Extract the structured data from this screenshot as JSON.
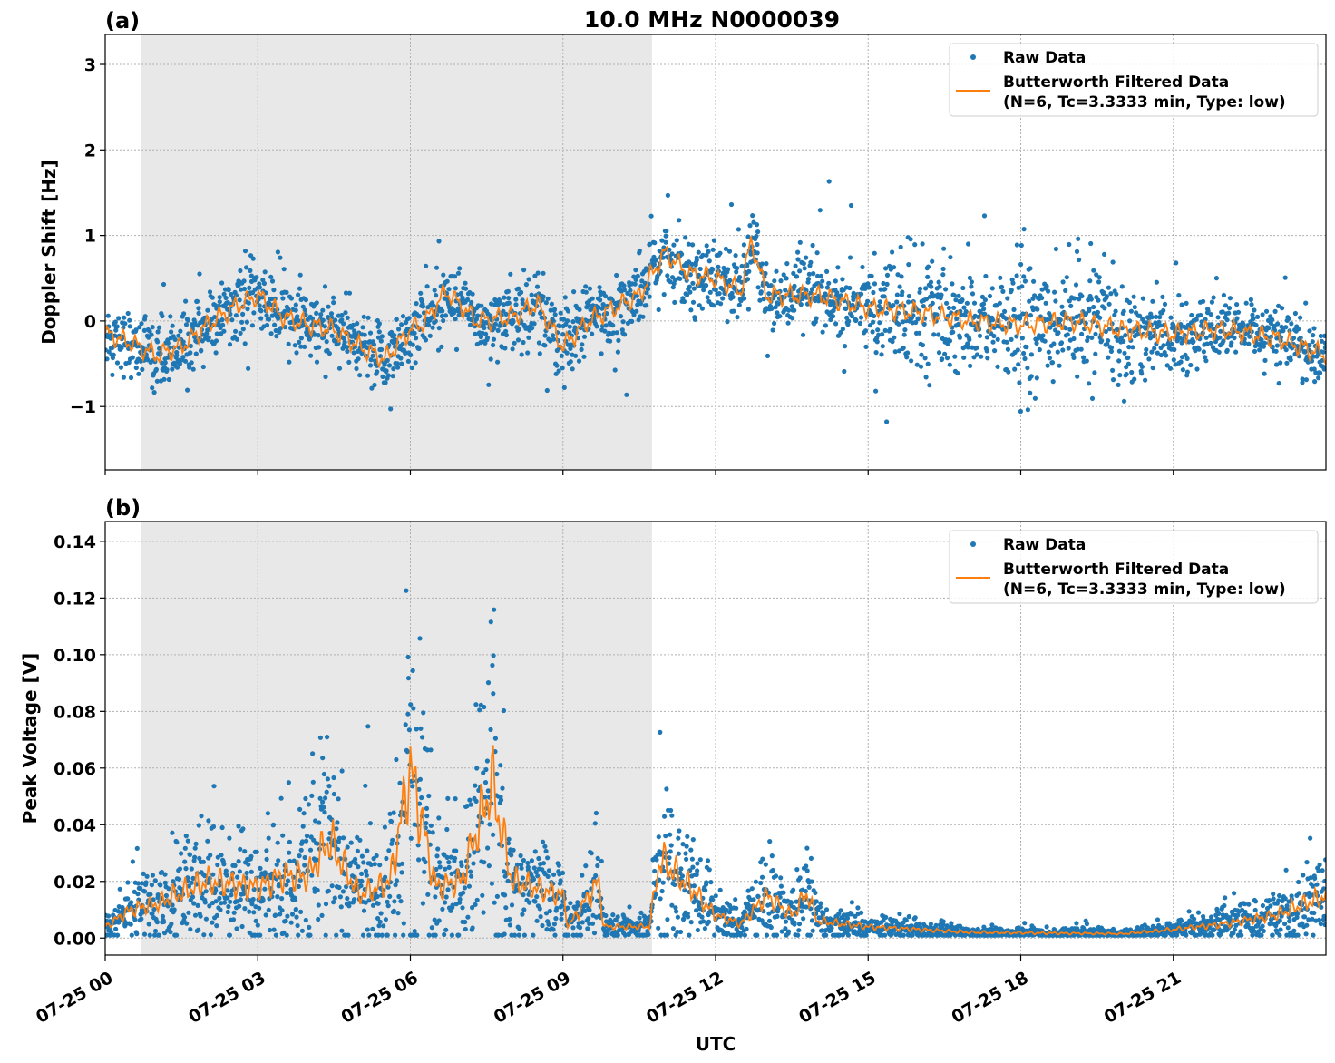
{
  "chart_data": [
    {
      "panel_label": "(a)",
      "type": "scatter",
      "title": "10.0 MHz N0000039",
      "xlabel": "",
      "ylabel": "Doppler Shift [Hz]",
      "xlim_hours": [
        0,
        24
      ],
      "ylim": [
        -1.74,
        3.35
      ],
      "yticks": [
        -1,
        0,
        1,
        2,
        3
      ],
      "ytick_labels": [
        "−1",
        "0",
        "1",
        "2",
        "3"
      ],
      "grid": true,
      "shaded_region_hours": [
        0.7,
        10.75
      ],
      "legend": {
        "placement": "top-right",
        "entries": [
          "Raw Data",
          "Butterworth Filtered Data",
          "(N=6, Tc=3.3333 min, Type: low)"
        ]
      },
      "series": [
        {
          "name": "Butterworth Filtered Data",
          "color": "#ff7f0e",
          "x_hours": [
            0,
            0.5,
            1,
            1.5,
            2,
            2.5,
            3,
            3.5,
            4,
            4.5,
            5,
            5.5,
            6,
            6.3,
            6.7,
            7.3,
            8,
            8.5,
            9,
            9.5,
            10,
            10.5,
            11,
            11.5,
            12,
            12.5,
            12.7,
            13,
            14,
            15,
            16,
            17,
            18,
            19,
            20,
            21,
            22,
            23,
            24
          ],
          "values": [
            -0.15,
            -0.25,
            -0.4,
            -0.3,
            -0.05,
            0.15,
            0.3,
            0.05,
            -0.05,
            -0.1,
            -0.3,
            -0.45,
            -0.1,
            0.0,
            0.35,
            0.0,
            0.05,
            0.2,
            -0.3,
            0.0,
            0.15,
            0.3,
            0.8,
            0.55,
            0.5,
            0.35,
            0.95,
            0.3,
            0.3,
            0.15,
            0.1,
            0.0,
            -0.05,
            0.0,
            -0.1,
            -0.15,
            -0.1,
            -0.2,
            -0.4
          ]
        },
        {
          "name": "Raw Data",
          "color": "#1f77b4",
          "spread_x_hours": [
            0,
            6,
            10,
            12,
            15,
            16,
            18,
            20,
            21,
            24
          ],
          "spread_std": [
            0.18,
            0.2,
            0.22,
            0.2,
            0.25,
            0.32,
            0.38,
            0.3,
            0.18,
            0.16
          ]
        }
      ]
    },
    {
      "panel_label": "(b)",
      "type": "scatter",
      "xlabel": "UTC",
      "ylabel": "Peak Voltage [V]",
      "xlim_hours": [
        0,
        24
      ],
      "ylim": [
        -0.006,
        0.147
      ],
      "yticks": [
        0,
        0.02,
        0.04,
        0.06,
        0.08,
        0.1,
        0.12,
        0.14
      ],
      "ytick_labels": [
        "0.00",
        "0.02",
        "0.04",
        "0.06",
        "0.08",
        "0.10",
        "0.12",
        "0.14"
      ],
      "xticks_hours": [
        0,
        3,
        6,
        9,
        12,
        15,
        18,
        21
      ],
      "xtick_labels": [
        "07-25 00",
        "07-25 03",
        "07-25 06",
        "07-25 09",
        "07-25 12",
        "07-25 15",
        "07-25 18",
        "07-25 21"
      ],
      "grid": true,
      "shaded_region_hours": [
        0.7,
        10.75
      ],
      "legend": {
        "placement": "top-right",
        "entries": [
          "Raw Data",
          "Butterworth Filtered Data",
          "(N=6, Tc=3.3333 min, Type: low)"
        ]
      },
      "series": [
        {
          "name": "Butterworth Filtered Data",
          "color": "#ff7f0e",
          "x_hours": [
            0,
            0.5,
            1,
            2,
            3,
            3.5,
            4,
            4.4,
            5,
            5.6,
            6,
            6.5,
            7,
            7.6,
            8,
            9,
            9.1,
            9.7,
            9.8,
            10.7,
            10.9,
            11.5,
            12,
            12.5,
            13,
            13.5,
            13.8,
            14,
            15,
            17,
            20,
            21,
            22,
            23,
            24
          ],
          "values": [
            0.004,
            0.01,
            0.012,
            0.02,
            0.018,
            0.022,
            0.022,
            0.035,
            0.015,
            0.02,
            0.06,
            0.018,
            0.02,
            0.055,
            0.02,
            0.015,
            0.004,
            0.02,
            0.004,
            0.004,
            0.028,
            0.018,
            0.008,
            0.005,
            0.015,
            0.008,
            0.016,
            0.006,
            0.004,
            0.002,
            0.0015,
            0.003,
            0.005,
            0.008,
            0.015
          ]
        },
        {
          "name": "Raw Data",
          "color": "#1f77b4",
          "spread_relative": 0.55
        }
      ]
    }
  ]
}
